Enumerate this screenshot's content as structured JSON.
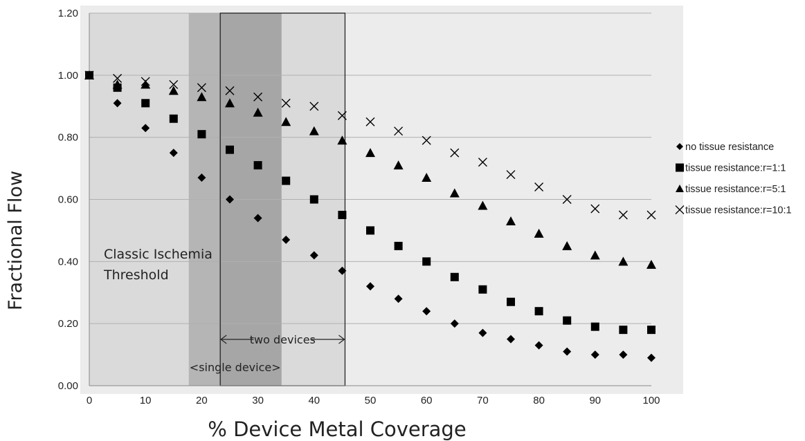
{
  "chart_data": {
    "type": "scatter",
    "xlabel": "% Device Metal Coverage",
    "ylabel": "Fractional Flow",
    "xlim": [
      0,
      100
    ],
    "ylim": [
      0,
      1.2
    ],
    "x_ticks": [
      "0",
      "10",
      "20",
      "30",
      "40",
      "50",
      "60",
      "70",
      "80",
      "90",
      "100"
    ],
    "y_ticks": [
      "0.00",
      "0.20",
      "0.40",
      "0.60",
      "0.80",
      "1.00",
      "1.20"
    ],
    "grid": "horizontal",
    "legend_position": "right",
    "x": [
      0,
      5,
      10,
      15,
      20,
      25,
      30,
      35,
      40,
      45,
      50,
      55,
      60,
      65,
      70,
      75,
      80,
      85,
      90,
      95,
      100
    ],
    "series": [
      {
        "name": "no tissue resistance",
        "marker": "diamond",
        "values": [
          1.0,
          0.91,
          0.83,
          0.75,
          0.67,
          0.6,
          0.54,
          0.47,
          0.42,
          0.37,
          0.32,
          0.28,
          0.24,
          0.2,
          0.17,
          0.15,
          0.13,
          0.11,
          0.1,
          0.1,
          0.09
        ]
      },
      {
        "name": "tissue resistance:r=1:1",
        "marker": "square",
        "values": [
          1.0,
          0.96,
          0.91,
          0.86,
          0.81,
          0.76,
          0.71,
          0.66,
          0.6,
          0.55,
          0.5,
          0.45,
          0.4,
          0.35,
          0.31,
          0.27,
          0.24,
          0.21,
          0.19,
          0.18,
          0.18
        ]
      },
      {
        "name": "tissue resistance:r=5:1",
        "marker": "triangle",
        "values": [
          1.0,
          0.97,
          0.97,
          0.95,
          0.93,
          0.91,
          0.88,
          0.85,
          0.82,
          0.79,
          0.75,
          0.71,
          0.67,
          0.62,
          0.58,
          0.53,
          0.49,
          0.45,
          0.42,
          0.4,
          0.39
        ]
      },
      {
        "name": "tissue resistance:r=10:1",
        "marker": "x",
        "values": [
          1.0,
          0.99,
          0.98,
          0.97,
          0.96,
          0.95,
          0.93,
          0.91,
          0.9,
          0.87,
          0.85,
          0.82,
          0.79,
          0.75,
          0.72,
          0.68,
          0.64,
          0.6,
          0.57,
          0.55,
          0.55
        ]
      }
    ],
    "regions": [
      {
        "label": "Classic Ischemia Threshold",
        "x_start": 0,
        "x_end": 45.5,
        "shade": "light"
      },
      {
        "label": "<single device>",
        "x_start": 17.7,
        "x_end": 34.2,
        "shade": "dark"
      },
      {
        "label": "two devices",
        "x_start": 23.3,
        "x_end": 45.5,
        "outlined": true
      }
    ],
    "annotations": {
      "ischemia_line1": "Classic Ischemia",
      "ischemia_line2": "Threshold",
      "two_devices": "two devices",
      "single_device": "<single device>"
    }
  },
  "colors": {
    "plot_background": "#ececec",
    "ischemia_region": "#dadada",
    "single_device_region": "#b5b5b5",
    "overlap_region": "#a6a6a6",
    "gridline": "#b0b0b0",
    "marker": "#000000"
  }
}
